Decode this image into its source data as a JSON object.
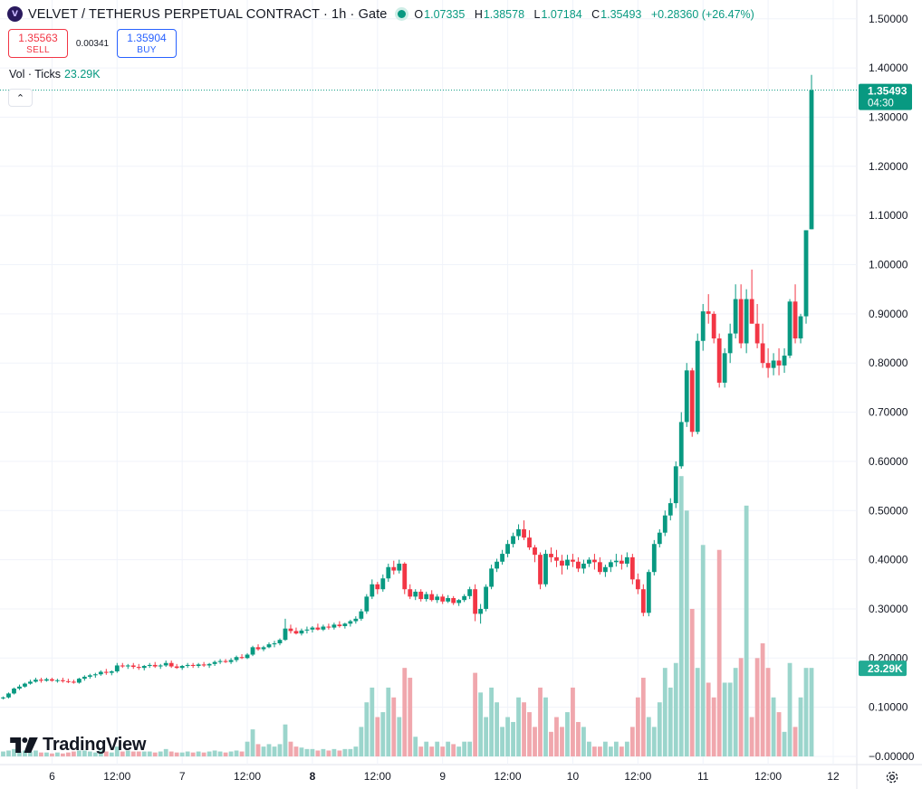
{
  "header": {
    "logo_letter": "V",
    "title": "VELVET / TETHERUS PERPETUAL CONTRACT · 1h · Gate",
    "ohlc": [
      {
        "key": "O",
        "value": "1.07335"
      },
      {
        "key": "H",
        "value": "1.38578"
      },
      {
        "key": "L",
        "value": "1.07184"
      },
      {
        "key": "C",
        "value": "1.35493"
      }
    ],
    "change": "+0.28360 (+26.47%)"
  },
  "trade": {
    "sell_price": "1.35563",
    "sell_label": "SELL",
    "spread": "0.00341",
    "buy_price": "1.35904",
    "buy_label": "BUY"
  },
  "volume_legend": {
    "label": "Vol · Ticks",
    "value": "23.29K"
  },
  "collapse_glyph": "⌃",
  "brand": {
    "name": "TradingView"
  },
  "colors": {
    "up": "#089981",
    "down": "#f23645",
    "up_vol": "#9bd5cc",
    "down_vol": "#f0a7ad"
  },
  "icons": [
    "tradingview-logo-icon",
    "settings-gear-icon",
    "chevron-up-icon"
  ],
  "chart_data": {
    "type": "candlestick",
    "price_axis": {
      "ticks": [
        "1.50000",
        "1.40000",
        "1.30000",
        "1.20000",
        "1.10000",
        "1.00000",
        "0.90000",
        "0.80000",
        "0.70000",
        "0.60000",
        "0.50000",
        "0.40000",
        "0.30000",
        "0.20000",
        "0.10000",
        "−0.00000"
      ],
      "range": [
        -0.0,
        1.5
      ]
    },
    "time_axis": {
      "ticks": [
        {
          "t": 12,
          "label": "6",
          "bold": false
        },
        {
          "t": 24,
          "label": "12:00",
          "bold": false
        },
        {
          "t": 36,
          "label": "7",
          "bold": false
        },
        {
          "t": 48,
          "label": "12:00",
          "bold": false
        },
        {
          "t": 60,
          "label": "8",
          "bold": true
        },
        {
          "t": 72,
          "label": "12:00",
          "bold": false
        },
        {
          "t": 84,
          "label": "9",
          "bold": false
        },
        {
          "t": 96,
          "label": "12:00",
          "bold": false
        },
        {
          "t": 108,
          "label": "10",
          "bold": false
        },
        {
          "t": 120,
          "label": "12:00",
          "bold": false
        },
        {
          "t": 132,
          "label": "11",
          "bold": false
        },
        {
          "t": 144,
          "label": "12:00",
          "bold": false
        },
        {
          "t": 156,
          "label": "12",
          "bold": false
        }
      ]
    },
    "last_price_label": {
      "value": "1.35493",
      "countdown": "04:30",
      "price": 1.35493
    },
    "volume_label": {
      "value": "23.29K",
      "volume": 0.18
    },
    "volume_note": "volume overlay uses price-axis units (right scale)",
    "candles": [
      [
        0.118,
        0.122,
        0.116,
        0.12,
        0.01
      ],
      [
        0.12,
        0.13,
        0.118,
        0.128,
        0.012
      ],
      [
        0.128,
        0.14,
        0.126,
        0.138,
        0.015
      ],
      [
        0.138,
        0.146,
        0.135,
        0.142,
        0.01
      ],
      [
        0.142,
        0.15,
        0.14,
        0.148,
        0.012
      ],
      [
        0.148,
        0.156,
        0.146,
        0.152,
        0.01
      ],
      [
        0.152,
        0.16,
        0.15,
        0.156,
        0.012
      ],
      [
        0.156,
        0.16,
        0.15,
        0.154,
        0.008
      ],
      [
        0.154,
        0.16,
        0.152,
        0.157,
        0.008
      ],
      [
        0.157,
        0.16,
        0.152,
        0.154,
        0.006
      ],
      [
        0.154,
        0.158,
        0.15,
        0.155,
        0.008
      ],
      [
        0.155,
        0.16,
        0.15,
        0.153,
        0.006
      ],
      [
        0.153,
        0.158,
        0.149,
        0.152,
        0.008
      ],
      [
        0.152,
        0.156,
        0.148,
        0.15,
        0.01
      ],
      [
        0.15,
        0.16,
        0.148,
        0.158,
        0.012
      ],
      [
        0.158,
        0.165,
        0.154,
        0.162,
        0.012
      ],
      [
        0.162,
        0.168,
        0.158,
        0.165,
        0.01
      ],
      [
        0.165,
        0.17,
        0.16,
        0.167,
        0.008
      ],
      [
        0.167,
        0.175,
        0.164,
        0.172,
        0.012
      ],
      [
        0.172,
        0.178,
        0.166,
        0.17,
        0.01
      ],
      [
        0.17,
        0.175,
        0.165,
        0.173,
        0.008
      ],
      [
        0.173,
        0.19,
        0.17,
        0.185,
        0.02
      ],
      [
        0.185,
        0.19,
        0.18,
        0.183,
        0.01
      ],
      [
        0.183,
        0.188,
        0.178,
        0.185,
        0.012
      ],
      [
        0.185,
        0.19,
        0.178,
        0.182,
        0.01
      ],
      [
        0.182,
        0.188,
        0.176,
        0.18,
        0.01
      ],
      [
        0.18,
        0.186,
        0.175,
        0.184,
        0.01
      ],
      [
        0.184,
        0.19,
        0.18,
        0.186,
        0.01
      ],
      [
        0.186,
        0.192,
        0.18,
        0.183,
        0.008
      ],
      [
        0.183,
        0.188,
        0.178,
        0.185,
        0.01
      ],
      [
        0.185,
        0.195,
        0.182,
        0.19,
        0.015
      ],
      [
        0.19,
        0.195,
        0.18,
        0.183,
        0.01
      ],
      [
        0.183,
        0.188,
        0.178,
        0.18,
        0.008
      ],
      [
        0.18,
        0.186,
        0.176,
        0.184,
        0.008
      ],
      [
        0.184,
        0.19,
        0.18,
        0.186,
        0.01
      ],
      [
        0.186,
        0.19,
        0.18,
        0.184,
        0.008
      ],
      [
        0.184,
        0.19,
        0.18,
        0.187,
        0.01
      ],
      [
        0.187,
        0.192,
        0.182,
        0.185,
        0.008
      ],
      [
        0.185,
        0.19,
        0.18,
        0.188,
        0.01
      ],
      [
        0.188,
        0.195,
        0.184,
        0.192,
        0.012
      ],
      [
        0.192,
        0.198,
        0.188,
        0.194,
        0.01
      ],
      [
        0.194,
        0.198,
        0.19,
        0.192,
        0.008
      ],
      [
        0.192,
        0.2,
        0.188,
        0.196,
        0.01
      ],
      [
        0.196,
        0.205,
        0.192,
        0.202,
        0.012
      ],
      [
        0.202,
        0.208,
        0.198,
        0.2,
        0.01
      ],
      [
        0.2,
        0.21,
        0.198,
        0.207,
        0.03
      ],
      [
        0.207,
        0.225,
        0.204,
        0.222,
        0.055
      ],
      [
        0.222,
        0.228,
        0.215,
        0.218,
        0.025
      ],
      [
        0.218,
        0.225,
        0.214,
        0.222,
        0.02
      ],
      [
        0.222,
        0.232,
        0.22,
        0.228,
        0.025
      ],
      [
        0.228,
        0.235,
        0.222,
        0.23,
        0.02
      ],
      [
        0.23,
        0.24,
        0.226,
        0.237,
        0.025
      ],
      [
        0.237,
        0.28,
        0.235,
        0.26,
        0.065
      ],
      [
        0.26,
        0.268,
        0.25,
        0.255,
        0.03
      ],
      [
        0.255,
        0.262,
        0.248,
        0.25,
        0.02
      ],
      [
        0.25,
        0.26,
        0.246,
        0.256,
        0.018
      ],
      [
        0.256,
        0.264,
        0.25,
        0.258,
        0.015
      ],
      [
        0.258,
        0.265,
        0.252,
        0.262,
        0.015
      ],
      [
        0.262,
        0.27,
        0.256,
        0.258,
        0.012
      ],
      [
        0.258,
        0.268,
        0.255,
        0.264,
        0.015
      ],
      [
        0.264,
        0.27,
        0.258,
        0.262,
        0.012
      ],
      [
        0.262,
        0.272,
        0.258,
        0.268,
        0.015
      ],
      [
        0.268,
        0.275,
        0.262,
        0.265,
        0.012
      ],
      [
        0.265,
        0.272,
        0.26,
        0.27,
        0.015
      ],
      [
        0.27,
        0.278,
        0.264,
        0.275,
        0.015
      ],
      [
        0.275,
        0.285,
        0.27,
        0.28,
        0.02
      ],
      [
        0.28,
        0.3,
        0.276,
        0.295,
        0.06
      ],
      [
        0.295,
        0.33,
        0.29,
        0.325,
        0.11
      ],
      [
        0.325,
        0.36,
        0.32,
        0.35,
        0.14
      ],
      [
        0.35,
        0.355,
        0.33,
        0.34,
        0.08
      ],
      [
        0.34,
        0.37,
        0.335,
        0.362,
        0.09
      ],
      [
        0.362,
        0.392,
        0.355,
        0.385,
        0.14
      ],
      [
        0.385,
        0.398,
        0.37,
        0.378,
        0.12
      ],
      [
        0.378,
        0.4,
        0.372,
        0.392,
        0.08
      ],
      [
        0.392,
        0.395,
        0.33,
        0.34,
        0.18
      ],
      [
        0.34,
        0.35,
        0.32,
        0.325,
        0.16
      ],
      [
        0.325,
        0.34,
        0.318,
        0.335,
        0.04
      ],
      [
        0.335,
        0.34,
        0.315,
        0.32,
        0.02
      ],
      [
        0.32,
        0.335,
        0.315,
        0.33,
        0.03
      ],
      [
        0.33,
        0.338,
        0.315,
        0.318,
        0.02
      ],
      [
        0.318,
        0.33,
        0.312,
        0.325,
        0.03
      ],
      [
        0.325,
        0.33,
        0.31,
        0.315,
        0.02
      ],
      [
        0.315,
        0.328,
        0.312,
        0.322,
        0.03
      ],
      [
        0.322,
        0.326,
        0.308,
        0.312,
        0.025
      ],
      [
        0.312,
        0.32,
        0.306,
        0.318,
        0.02
      ],
      [
        0.318,
        0.33,
        0.314,
        0.326,
        0.03
      ],
      [
        0.326,
        0.345,
        0.32,
        0.34,
        0.03
      ],
      [
        0.34,
        0.35,
        0.275,
        0.29,
        0.17
      ],
      [
        0.29,
        0.31,
        0.27,
        0.3,
        0.13
      ],
      [
        0.3,
        0.35,
        0.295,
        0.345,
        0.08
      ],
      [
        0.345,
        0.39,
        0.34,
        0.382,
        0.14
      ],
      [
        0.382,
        0.402,
        0.375,
        0.396,
        0.11
      ],
      [
        0.396,
        0.42,
        0.39,
        0.412,
        0.06
      ],
      [
        0.412,
        0.44,
        0.405,
        0.432,
        0.08
      ],
      [
        0.432,
        0.455,
        0.425,
        0.448,
        0.07
      ],
      [
        0.448,
        0.472,
        0.44,
        0.462,
        0.12
      ],
      [
        0.462,
        0.48,
        0.44,
        0.445,
        0.11
      ],
      [
        0.445,
        0.46,
        0.42,
        0.425,
        0.09
      ],
      [
        0.425,
        0.43,
        0.395,
        0.41,
        0.06
      ],
      [
        0.41,
        0.415,
        0.34,
        0.35,
        0.14
      ],
      [
        0.35,
        0.42,
        0.345,
        0.412,
        0.12
      ],
      [
        0.412,
        0.425,
        0.395,
        0.405,
        0.05
      ],
      [
        0.405,
        0.42,
        0.385,
        0.398,
        0.08
      ],
      [
        0.398,
        0.41,
        0.37,
        0.388,
        0.06
      ],
      [
        0.388,
        0.41,
        0.38,
        0.4,
        0.09
      ],
      [
        0.4,
        0.412,
        0.385,
        0.396,
        0.14
      ],
      [
        0.396,
        0.405,
        0.375,
        0.382,
        0.07
      ],
      [
        0.382,
        0.4,
        0.372,
        0.392,
        0.06
      ],
      [
        0.392,
        0.405,
        0.385,
        0.4,
        0.03
      ],
      [
        0.4,
        0.412,
        0.38,
        0.395,
        0.02
      ],
      [
        0.395,
        0.405,
        0.37,
        0.375,
        0.02
      ],
      [
        0.375,
        0.39,
        0.365,
        0.385,
        0.03
      ],
      [
        0.385,
        0.4,
        0.375,
        0.395,
        0.02
      ],
      [
        0.395,
        0.412,
        0.386,
        0.398,
        0.03
      ],
      [
        0.398,
        0.41,
        0.38,
        0.392,
        0.02
      ],
      [
        0.392,
        0.415,
        0.385,
        0.405,
        0.03
      ],
      [
        0.405,
        0.412,
        0.35,
        0.36,
        0.06
      ],
      [
        0.36,
        0.372,
        0.33,
        0.34,
        0.12
      ],
      [
        0.34,
        0.35,
        0.285,
        0.292,
        0.16
      ],
      [
        0.292,
        0.38,
        0.285,
        0.375,
        0.08
      ],
      [
        0.375,
        0.44,
        0.368,
        0.432,
        0.06
      ],
      [
        0.432,
        0.462,
        0.425,
        0.455,
        0.11
      ],
      [
        0.455,
        0.5,
        0.448,
        0.49,
        0.18
      ],
      [
        0.49,
        0.525,
        0.48,
        0.515,
        0.14
      ],
      [
        0.515,
        0.6,
        0.505,
        0.59,
        0.19
      ],
      [
        0.59,
        0.7,
        0.585,
        0.68,
        0.57
      ],
      [
        0.68,
        0.8,
        0.67,
        0.785,
        0.5
      ],
      [
        0.785,
        0.79,
        0.65,
        0.66,
        0.3
      ],
      [
        0.66,
        0.86,
        0.655,
        0.845,
        0.18
      ],
      [
        0.845,
        0.92,
        0.825,
        0.905,
        0.43
      ],
      [
        0.905,
        0.94,
        0.88,
        0.9,
        0.15
      ],
      [
        0.9,
        0.905,
        0.84,
        0.85,
        0.12
      ],
      [
        0.85,
        0.86,
        0.75,
        0.76,
        0.42
      ],
      [
        0.76,
        0.83,
        0.75,
        0.82,
        0.15
      ],
      [
        0.82,
        0.88,
        0.8,
        0.86,
        0.15
      ],
      [
        0.86,
        0.96,
        0.85,
        0.93,
        0.18
      ],
      [
        0.93,
        0.96,
        0.83,
        0.84,
        0.2
      ],
      [
        0.84,
        0.95,
        0.82,
        0.93,
        0.51
      ],
      [
        0.93,
        0.99,
        0.88,
        0.88,
        0.08
      ],
      [
        0.88,
        0.92,
        0.83,
        0.84,
        0.2
      ],
      [
        0.84,
        0.88,
        0.79,
        0.8,
        0.23
      ],
      [
        0.8,
        0.83,
        0.77,
        0.79,
        0.18
      ],
      [
        0.79,
        0.82,
        0.775,
        0.805,
        0.12
      ],
      [
        0.805,
        0.83,
        0.775,
        0.795,
        0.09
      ],
      [
        0.795,
        0.83,
        0.78,
        0.815,
        0.05
      ],
      [
        0.815,
        0.93,
        0.81,
        0.925,
        0.19
      ],
      [
        0.925,
        0.96,
        0.84,
        0.85,
        0.06
      ],
      [
        0.85,
        0.9,
        0.84,
        0.895,
        0.12
      ],
      [
        0.895,
        1.07,
        0.88,
        1.07,
        0.18
      ],
      [
        1.072,
        1.386,
        1.072,
        1.355,
        0.18
      ]
    ]
  }
}
